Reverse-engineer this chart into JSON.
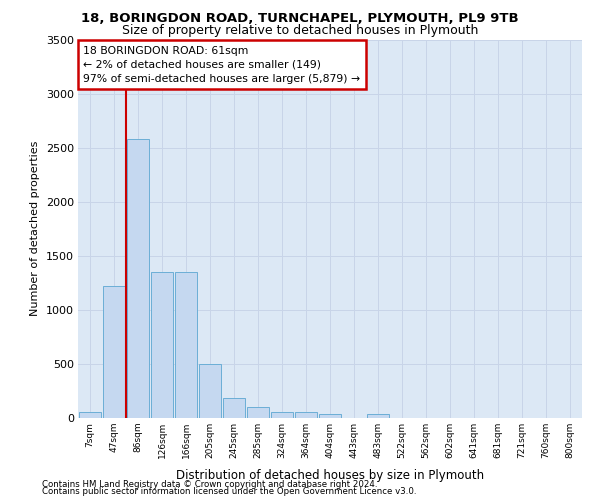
{
  "title1": "18, BORINGDON ROAD, TURNCHAPEL, PLYMOUTH, PL9 9TB",
  "title2": "Size of property relative to detached houses in Plymouth",
  "xlabel": "Distribution of detached houses by size in Plymouth",
  "ylabel": "Number of detached properties",
  "categories": [
    "7sqm",
    "47sqm",
    "86sqm",
    "126sqm",
    "166sqm",
    "205sqm",
    "245sqm",
    "285sqm",
    "324sqm",
    "364sqm",
    "404sqm",
    "443sqm",
    "483sqm",
    "522sqm",
    "562sqm",
    "602sqm",
    "641sqm",
    "681sqm",
    "721sqm",
    "760sqm",
    "800sqm"
  ],
  "bar_values": [
    55,
    1220,
    2580,
    1350,
    1350,
    500,
    185,
    100,
    55,
    50,
    35,
    0,
    35,
    0,
    0,
    0,
    0,
    0,
    0,
    0,
    0
  ],
  "bar_color": "#c5d8f0",
  "bar_edge_color": "#6baed6",
  "grid_color": "#c8d4e8",
  "background_color": "#dce8f5",
  "annotation_text": "18 BORINGDON ROAD: 61sqm\n← 2% of detached houses are smaller (149)\n97% of semi-detached houses are larger (5,879) →",
  "annotation_box_facecolor": "#ffffff",
  "annotation_box_edgecolor": "#cc0000",
  "vline_color": "#cc0000",
  "vline_x": 1.5,
  "ylim": [
    0,
    3500
  ],
  "yticks": [
    0,
    500,
    1000,
    1500,
    2000,
    2500,
    3000,
    3500
  ],
  "footnote1": "Contains HM Land Registry data © Crown copyright and database right 2024.",
  "footnote2": "Contains public sector information licensed under the Open Government Licence v3.0."
}
